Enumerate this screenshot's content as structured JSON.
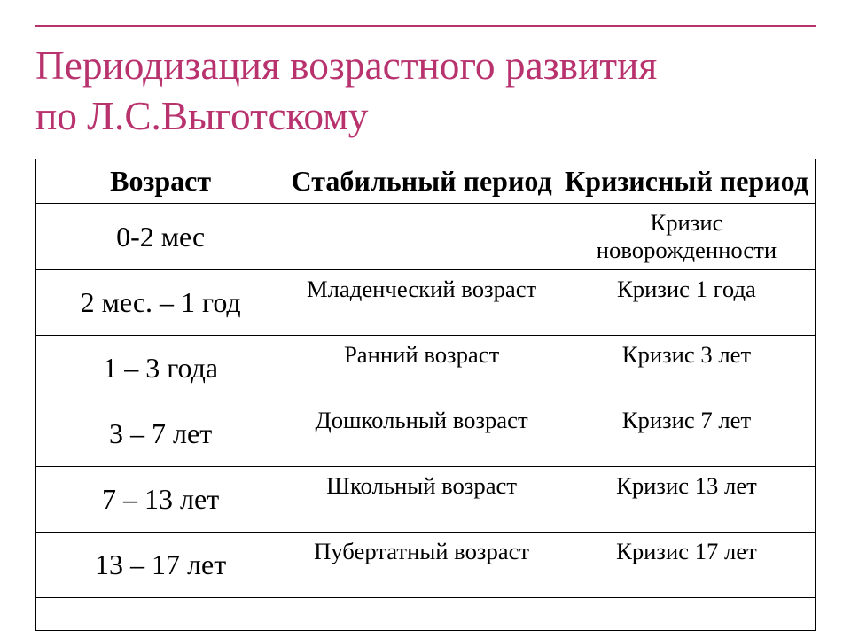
{
  "colors": {
    "accent": "#b8326e",
    "title": "#b8326e",
    "table_border": "#000000",
    "text": "#000000",
    "background": "#ffffff"
  },
  "title": {
    "line1": "Периодизация возрастного развития",
    "line2": "по Л.С.Выготскому",
    "fontsize_pt": 34
  },
  "table": {
    "type": "table",
    "header_fontsize_pt": 24,
    "age_col_fontsize_pt": 24,
    "data_col_fontsize_pt": 20,
    "col_widths_pct": [
      32,
      35,
      33
    ],
    "columns": [
      "Возраст",
      "Стабильный период",
      "Кризисный период"
    ],
    "rows": [
      {
        "age": "0-2 мес",
        "stable": "",
        "crisis": "Кризис новорожденности"
      },
      {
        "age": "2 мес. – 1 год",
        "stable": "Младенческий возраст",
        "crisis": "Кризис 1 года"
      },
      {
        "age": "1 – 3 года",
        "stable": "Ранний возраст",
        "crisis": "Кризис 3 лет"
      },
      {
        "age": "3 – 7 лет",
        "stable": "Дошкольный возраст",
        "crisis": "Кризис 7 лет"
      },
      {
        "age": "7 – 13 лет",
        "stable": "Школьный возраст",
        "crisis": "Кризис 13 лет"
      },
      {
        "age": "13 – 17 лет",
        "stable": "Пубертатный возраст",
        "crisis": "Кризис 17 лет"
      },
      {
        "age": "",
        "stable": "",
        "crisis": ""
      }
    ]
  }
}
